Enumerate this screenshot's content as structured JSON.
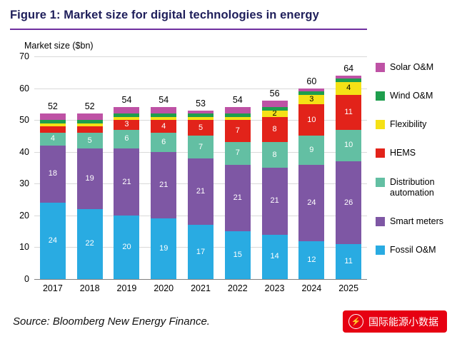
{
  "title": "Figure 1: Market size for digital technologies in energy",
  "source": "Source: Bloomberg New Energy Finance.",
  "logo_text": "国际能源小数据",
  "logo_icon": "⚡",
  "chart_data": {
    "type": "bar",
    "stacked": true,
    "title": "Figure 1: Market size for digital technologies in energy",
    "ylabel": "Market size ($bn)",
    "xlabel": "",
    "ylim": [
      0,
      70
    ],
    "yticks": [
      0,
      10,
      20,
      30,
      40,
      50,
      60,
      70
    ],
    "grid": true,
    "legend_position": "right",
    "categories": [
      "2017",
      "2018",
      "2019",
      "2020",
      "2021",
      "2022",
      "2023",
      "2024",
      "2025"
    ],
    "totals": [
      52,
      52,
      54,
      54,
      53,
      54,
      56,
      60,
      64
    ],
    "series": [
      {
        "name": "Fossil O&M",
        "color": "#29ABE2",
        "label_color": "#ffffff",
        "values": [
          24,
          22,
          20,
          19,
          17,
          15,
          14,
          12,
          11
        ],
        "labels": [
          "24",
          "22",
          "20",
          "19",
          "17",
          "15",
          "14",
          "12",
          "11"
        ]
      },
      {
        "name": "Smart meters",
        "color": "#7E57A4",
        "label_color": "#ffffff",
        "values": [
          18,
          19,
          21,
          21,
          21,
          21,
          21,
          24,
          26
        ],
        "labels": [
          "18",
          "19",
          "21",
          "21",
          "21",
          "21",
          "21",
          "24",
          "26"
        ]
      },
      {
        "name": "Distribution automation",
        "color": "#63BFA3",
        "label_color": "#ffffff",
        "values": [
          4,
          5,
          6,
          6,
          7,
          7,
          8,
          9,
          10
        ],
        "labels": [
          "4",
          "5",
          "6",
          "6",
          "7",
          "7",
          "8",
          "9",
          "10"
        ]
      },
      {
        "name": "HEMS",
        "color": "#E2231A",
        "label_color": "#ffffff",
        "values": [
          2,
          2,
          3,
          4,
          5,
          7,
          8,
          10,
          11
        ],
        "labels": [
          "",
          "",
          "3",
          "4",
          "5",
          "7",
          "8",
          "10",
          "11"
        ]
      },
      {
        "name": "Flexibility",
        "color": "#F5E116",
        "label_color": "#000000",
        "values": [
          1,
          1,
          1,
          1,
          1,
          1,
          2,
          3,
          4
        ],
        "labels": [
          "",
          "",
          "",
          "",
          "",
          "",
          "2",
          "3",
          "4"
        ]
      },
      {
        "name": "Wind O&M",
        "color": "#1E9E4D",
        "label_color": "#ffffff",
        "values": [
          1,
          1,
          1,
          1,
          1,
          1,
          1,
          1,
          1
        ],
        "labels": [
          "",
          "",
          "",
          "",
          "",
          "",
          "",
          "",
          ""
        ]
      },
      {
        "name": "Solar O&M",
        "color": "#BE52A5",
        "label_color": "#ffffff",
        "values": [
          2,
          2,
          2,
          2,
          1,
          2,
          2,
          1,
          1
        ],
        "labels": [
          "",
          "",
          "",
          "",
          "",
          "",
          "",
          "",
          ""
        ]
      }
    ],
    "legend": [
      "Solar O&M",
      "Wind O&M",
      "Flexibility",
      "HEMS",
      "Distribution automation",
      "Smart meters",
      "Fossil O&M"
    ]
  }
}
